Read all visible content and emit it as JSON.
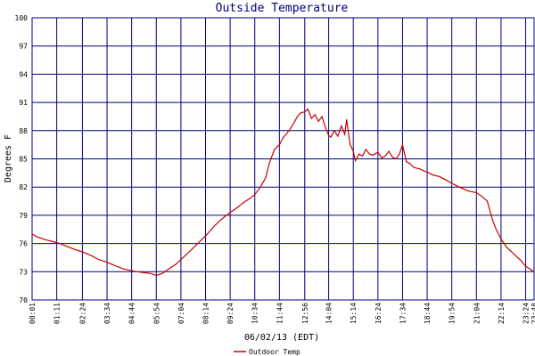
{
  "chart_data": {
    "type": "line",
    "title": "Outside Temperature",
    "xlabel": "06/02/13 (EDT)",
    "ylabel": "Degrees F",
    "ylim": [
      70,
      100
    ],
    "yticks": [
      70,
      73,
      76,
      79,
      82,
      85,
      88,
      91,
      94,
      97,
      100
    ],
    "xlim": [
      "00:01",
      "23:48"
    ],
    "xticks": [
      "00:01",
      "01:11",
      "02:24",
      "03:34",
      "04:44",
      "05:54",
      "07:04",
      "08:14",
      "09:24",
      "10:34",
      "11:44",
      "12:56",
      "14:04",
      "15:14",
      "16:24",
      "17:34",
      "18:44",
      "19:54",
      "21:04",
      "22:14",
      "23:24",
      "23:48"
    ],
    "grid": true,
    "legend_position": "bottom-left",
    "colors": {
      "line": "#cc0000",
      "grid": "#000080",
      "title": "#000080",
      "frame": "#000080"
    },
    "series": [
      {
        "name": "Outdoor Temp",
        "x": [
          "00:01",
          "00:15",
          "00:40",
          "01:00",
          "01:11",
          "01:40",
          "02:00",
          "02:24",
          "02:50",
          "03:10",
          "03:34",
          "04:00",
          "04:20",
          "04:44",
          "05:00",
          "05:20",
          "05:40",
          "05:54",
          "06:10",
          "06:30",
          "06:50",
          "07:04",
          "07:30",
          "08:00",
          "08:14",
          "08:40",
          "09:00",
          "09:24",
          "09:40",
          "10:00",
          "10:20",
          "10:34",
          "10:50",
          "11:05",
          "11:15",
          "11:30",
          "11:44",
          "11:55",
          "12:05",
          "12:15",
          "12:25",
          "12:35",
          "12:45",
          "12:56",
          "13:05",
          "13:15",
          "13:25",
          "13:35",
          "13:45",
          "13:55",
          "14:04",
          "14:10",
          "14:20",
          "14:30",
          "14:40",
          "14:50",
          "14:55",
          "15:00",
          "15:05",
          "15:14",
          "15:20",
          "15:30",
          "15:40",
          "15:50",
          "16:00",
          "16:10",
          "16:24",
          "16:35",
          "16:45",
          "16:55",
          "17:05",
          "17:15",
          "17:25",
          "17:34",
          "17:45",
          "17:55",
          "18:05",
          "18:15",
          "18:25",
          "18:35",
          "18:44",
          "19:00",
          "19:20",
          "19:40",
          "19:54",
          "20:15",
          "20:40",
          "21:04",
          "21:20",
          "21:35",
          "21:50",
          "22:00",
          "22:14",
          "22:30",
          "22:50",
          "23:10",
          "23:24",
          "23:40",
          "23:48"
        ],
        "values": [
          77.0,
          76.7,
          76.4,
          76.2,
          76.1,
          75.7,
          75.4,
          75.1,
          74.7,
          74.3,
          74.0,
          73.6,
          73.3,
          73.1,
          73.0,
          72.9,
          72.8,
          72.6,
          72.8,
          73.3,
          73.8,
          74.3,
          75.2,
          76.3,
          76.8,
          77.9,
          78.6,
          79.3,
          79.7,
          80.3,
          80.8,
          81.2,
          82.0,
          83.0,
          84.5,
          86.0,
          86.5,
          87.3,
          87.7,
          88.2,
          88.8,
          89.5,
          89.9,
          90.0,
          90.3,
          89.3,
          89.7,
          89.0,
          89.5,
          88.3,
          87.5,
          87.3,
          88.0,
          87.4,
          88.5,
          87.6,
          89.2,
          87.8,
          86.5,
          85.8,
          84.8,
          85.5,
          85.3,
          86.0,
          85.5,
          85.4,
          85.7,
          85.1,
          85.3,
          85.8,
          85.2,
          85.0,
          85.5,
          86.5,
          84.7,
          84.5,
          84.1,
          84.0,
          83.9,
          83.7,
          83.6,
          83.3,
          83.1,
          82.7,
          82.4,
          82.0,
          81.6,
          81.4,
          81.0,
          80.5,
          78.5,
          77.5,
          76.5,
          75.6,
          74.9,
          74.2,
          73.6,
          73.2,
          73.0
        ]
      }
    ]
  }
}
